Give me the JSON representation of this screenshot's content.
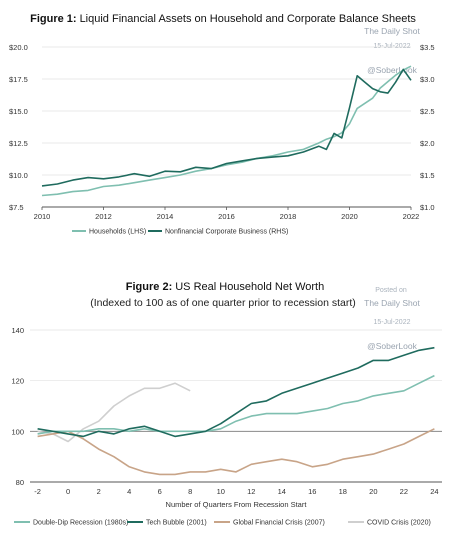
{
  "chart_data": [
    {
      "type": "line",
      "title_bold": "Figure 1:",
      "title": "Liquid Financial Assets on Household and Corporate Balance Sheets",
      "x": [
        2010,
        2010.5,
        2011,
        2011.5,
        2012,
        2012.5,
        2013,
        2013.5,
        2014,
        2014.5,
        2015,
        2015.5,
        2016,
        2016.5,
        2017,
        2017.5,
        2018,
        2018.5,
        2019,
        2019.25,
        2019.5,
        2019.75,
        2020,
        2020.25,
        2020.5,
        2020.75,
        2021,
        2021.25,
        2021.5,
        2021.75,
        2022
      ],
      "x_ticks": [
        "2010",
        "2012",
        "2014",
        "2016",
        "2018",
        "2020",
        "2022"
      ],
      "xlim": [
        2010,
        2022
      ],
      "y_left_ticks": [
        "$7.5",
        "$10.0",
        "$12.5",
        "$15.0",
        "$17.5",
        "$20.0"
      ],
      "y_left_lim": [
        7.5,
        20.0
      ],
      "y_right_ticks": [
        "$1.0",
        "$1.5",
        "$2.0",
        "$2.5",
        "$3.0",
        "$3.5"
      ],
      "y_right_lim": [
        1.0,
        3.5
      ],
      "series": [
        {
          "name": "Households (LHS)",
          "axis": "left",
          "color": "#7fbfb0",
          "values": [
            8.4,
            8.5,
            8.7,
            8.8,
            9.1,
            9.2,
            9.4,
            9.6,
            9.8,
            10.0,
            10.3,
            10.5,
            10.8,
            11.0,
            11.3,
            11.5,
            11.8,
            12.0,
            12.5,
            12.8,
            13.0,
            13.3,
            14.0,
            15.2,
            15.6,
            16.0,
            16.8,
            17.3,
            17.8,
            18.2,
            18.5
          ]
        },
        {
          "name": "Nonfinancial Corporate Business (RHS)",
          "axis": "right",
          "color": "#1f6b5e",
          "values": [
            1.33,
            1.36,
            1.42,
            1.46,
            1.44,
            1.47,
            1.52,
            1.48,
            1.56,
            1.55,
            1.62,
            1.6,
            1.68,
            1.72,
            1.76,
            1.78,
            1.8,
            1.86,
            1.95,
            1.9,
            2.15,
            2.08,
            2.55,
            3.05,
            2.95,
            2.85,
            2.8,
            2.78,
            2.95,
            3.15,
            2.98
          ]
        }
      ],
      "watermarks": [
        "The Daily Shot",
        "15-Jul-2022",
        "@SoberLook"
      ]
    },
    {
      "type": "line",
      "title_bold": "Figure 2:",
      "title": "US Real Household Net Worth",
      "subtitle": "(Indexed to 100 as of one quarter prior to recession start)",
      "xlabel": "Number of Quarters From Recession Start",
      "x_ticks": [
        "-2",
        "0",
        "2",
        "4",
        "6",
        "8",
        "10",
        "12",
        "14",
        "16",
        "18",
        "20",
        "22",
        "24"
      ],
      "xlim": [
        -2.5,
        24.5
      ],
      "y_ticks": [
        "80",
        "100",
        "120",
        "140"
      ],
      "ylim": [
        80,
        145
      ],
      "reference_line": 100,
      "series": [
        {
          "name": "Double-Dip Recession (1980s)",
          "color": "#7fbfb0",
          "x": [
            -2,
            -1,
            0,
            1,
            2,
            3,
            4,
            5,
            6,
            7,
            8,
            9,
            10,
            11,
            12,
            13,
            14,
            15,
            16,
            17,
            18,
            19,
            20,
            21,
            22,
            23,
            24
          ],
          "values": [
            99,
            100,
            100,
            100,
            101,
            101,
            100,
            101,
            100,
            100,
            100,
            100,
            101,
            104,
            106,
            107,
            107,
            107,
            108,
            109,
            111,
            112,
            114,
            115,
            116,
            119,
            122
          ]
        },
        {
          "name": "Tech Bubble (2001)",
          "color": "#1f6b5e",
          "x": [
            -2,
            -1,
            0,
            1,
            2,
            3,
            4,
            5,
            6,
            7,
            8,
            9,
            10,
            11,
            12,
            13,
            14,
            15,
            16,
            17,
            18,
            19,
            20,
            21,
            22,
            23,
            24
          ],
          "values": [
            101,
            100,
            99,
            98,
            100,
            99,
            101,
            102,
            100,
            98,
            99,
            100,
            103,
            107,
            111,
            112,
            115,
            117,
            119,
            121,
            123,
            125,
            128,
            128,
            130,
            132,
            133
          ]
        },
        {
          "name": "Global Financial Crisis (2007)",
          "color": "#c8a488",
          "x": [
            -2,
            -1,
            0,
            1,
            2,
            3,
            4,
            5,
            6,
            7,
            8,
            9,
            10,
            11,
            12,
            13,
            14,
            15,
            16,
            17,
            18,
            19,
            20,
            21,
            22,
            23,
            24
          ],
          "values": [
            98,
            99,
            100,
            97,
            93,
            90,
            86,
            84,
            83,
            83,
            84,
            84,
            85,
            84,
            87,
            88,
            89,
            88,
            86,
            87,
            89,
            90,
            91,
            93,
            95,
            98,
            101
          ]
        },
        {
          "name": "COVID Crisis (2020)",
          "color": "#cfcfcf",
          "x": [
            -2,
            -1,
            0,
            1,
            2,
            3,
            4,
            5,
            6,
            7,
            8
          ],
          "values": [
            100,
            99,
            96,
            101,
            104,
            110,
            114,
            117,
            117,
            119,
            116
          ]
        }
      ],
      "watermarks": [
        "Posted on",
        "The Daily Shot",
        "15-Jul-2022",
        "@SoberLook"
      ]
    }
  ]
}
